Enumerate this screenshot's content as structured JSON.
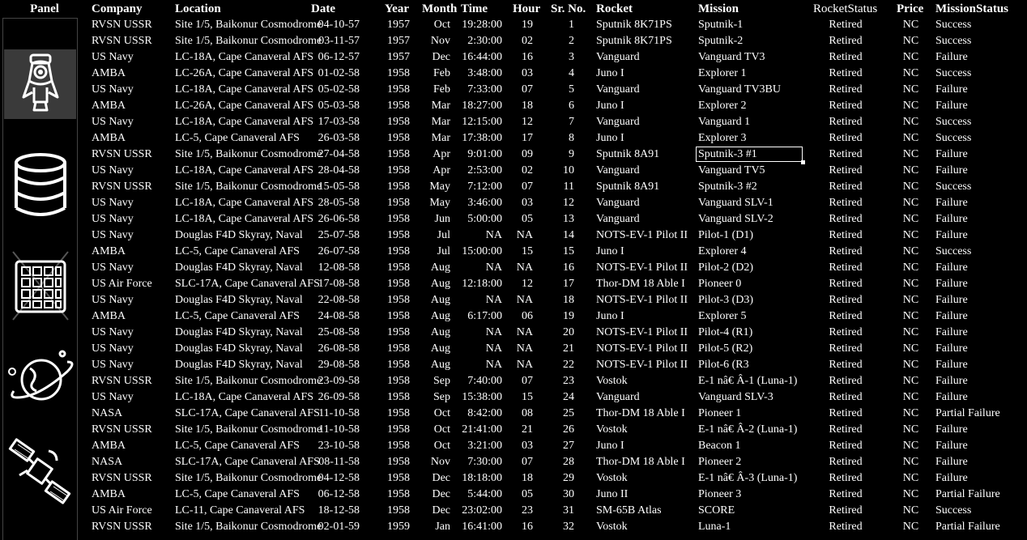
{
  "header": {
    "panel": "Panel",
    "company": "Company",
    "location": "Location",
    "date": "Date",
    "year": "Year",
    "month": "Month",
    "time": "Time",
    "hour": "Hour",
    "srno": "Sr. No.",
    "rocket": "Rocket",
    "mission": "Mission",
    "rocketstatus": "RocketStatus",
    "price": "Price",
    "missionstatus": "MissionStatus"
  },
  "panel_icons": [
    "rocket-icon",
    "database-icon",
    "grid-table-icon",
    "planet-icon",
    "satellite-icon"
  ],
  "selected": {
    "row": 8,
    "column": "mission"
  },
  "rows": [
    [
      "RVSN USSR",
      "Site 1/5, Baikonur Cosmodrome",
      "04-10-57",
      "1957",
      "Oct",
      "19:28:00",
      "19",
      "1",
      "Sputnik 8K71PS",
      "Sputnik-1",
      "Retired",
      "NC",
      "Success"
    ],
    [
      "RVSN USSR",
      "Site 1/5, Baikonur Cosmodrome",
      "03-11-57",
      "1957",
      "Nov",
      "2:30:00",
      "02",
      "2",
      "Sputnik 8K71PS",
      "Sputnik-2",
      "Retired",
      "NC",
      "Success"
    ],
    [
      "US Navy",
      "LC-18A, Cape Canaveral AFS",
      "06-12-57",
      "1957",
      "Dec",
      "16:44:00",
      "16",
      "3",
      "Vanguard",
      "Vanguard TV3",
      "Retired",
      "NC",
      "Failure"
    ],
    [
      "AMBA",
      "LC-26A, Cape Canaveral AFS",
      "01-02-58",
      "1958",
      "Feb",
      "3:48:00",
      "03",
      "4",
      "Juno I",
      "Explorer 1",
      "Retired",
      "NC",
      "Success"
    ],
    [
      "US Navy",
      "LC-18A, Cape Canaveral AFS",
      "05-02-58",
      "1958",
      "Feb",
      "7:33:00",
      "07",
      "5",
      "Vanguard",
      "Vanguard TV3BU",
      "Retired",
      "NC",
      "Failure"
    ],
    [
      "AMBA",
      "LC-26A, Cape Canaveral AFS",
      "05-03-58",
      "1958",
      "Mar",
      "18:27:00",
      "18",
      "6",
      "Juno I",
      "Explorer 2",
      "Retired",
      "NC",
      "Failure"
    ],
    [
      "US Navy",
      "LC-18A, Cape Canaveral AFS",
      "17-03-58",
      "1958",
      "Mar",
      "12:15:00",
      "12",
      "7",
      "Vanguard",
      "Vanguard 1",
      "Retired",
      "NC",
      "Success"
    ],
    [
      "AMBA",
      "LC-5, Cape Canaveral AFS",
      "26-03-58",
      "1958",
      "Mar",
      "17:38:00",
      "17",
      "8",
      "Juno I",
      "Explorer 3",
      "Retired",
      "NC",
      "Success"
    ],
    [
      "RVSN USSR",
      "Site 1/5, Baikonur Cosmodrome",
      "27-04-58",
      "1958",
      "Apr",
      "9:01:00",
      "09",
      "9",
      "Sputnik 8A91",
      "Sputnik-3 #1",
      "Retired",
      "NC",
      "Failure"
    ],
    [
      "US Navy",
      "LC-18A, Cape Canaveral AFS",
      "28-04-58",
      "1958",
      "Apr",
      "2:53:00",
      "02",
      "10",
      "Vanguard",
      "Vanguard TV5",
      "Retired",
      "NC",
      "Failure"
    ],
    [
      "RVSN USSR",
      "Site 1/5, Baikonur Cosmodrome",
      "15-05-58",
      "1958",
      "May",
      "7:12:00",
      "07",
      "11",
      "Sputnik 8A91",
      "Sputnik-3 #2",
      "Retired",
      "NC",
      "Success"
    ],
    [
      "US Navy",
      "LC-18A, Cape Canaveral AFS",
      "28-05-58",
      "1958",
      "May",
      "3:46:00",
      "03",
      "12",
      "Vanguard",
      "Vanguard SLV-1",
      "Retired",
      "NC",
      "Failure"
    ],
    [
      "US Navy",
      "LC-18A, Cape Canaveral AFS",
      "26-06-58",
      "1958",
      "Jun",
      "5:00:00",
      "05",
      "13",
      "Vanguard",
      "Vanguard SLV-2",
      "Retired",
      "NC",
      "Failure"
    ],
    [
      "US Navy",
      "Douglas F4D Skyray, Naval",
      "25-07-58",
      "1958",
      "Jul",
      "NA",
      "NA",
      "14",
      "NOTS-EV-1 Pilot II",
      "Pilot-1 (D1)",
      "Retired",
      "NC",
      "Failure"
    ],
    [
      "AMBA",
      "LC-5, Cape Canaveral AFS",
      "26-07-58",
      "1958",
      "Jul",
      "15:00:00",
      "15",
      "15",
      "Juno I",
      "Explorer 4",
      "Retired",
      "NC",
      "Success"
    ],
    [
      "US Navy",
      "Douglas F4D Skyray, Naval",
      "12-08-58",
      "1958",
      "Aug",
      "NA",
      "NA",
      "16",
      "NOTS-EV-1 Pilot II",
      "Pilot-2 (D2)",
      "Retired",
      "NC",
      "Failure"
    ],
    [
      "US Air Force",
      "SLC-17A, Cape Canaveral AFS",
      "17-08-58",
      "1958",
      "Aug",
      "12:18:00",
      "12",
      "17",
      "Thor-DM 18 Able I",
      "Pioneer 0",
      "Retired",
      "NC",
      "Failure"
    ],
    [
      "US Navy",
      "Douglas F4D Skyray, Naval",
      "22-08-58",
      "1958",
      "Aug",
      "NA",
      "NA",
      "18",
      "NOTS-EV-1 Pilot II",
      "Pilot-3 (D3)",
      "Retired",
      "NC",
      "Failure"
    ],
    [
      "AMBA",
      "LC-5, Cape Canaveral AFS",
      "24-08-58",
      "1958",
      "Aug",
      "6:17:00",
      "06",
      "19",
      "Juno I",
      "Explorer 5",
      "Retired",
      "NC",
      "Failure"
    ],
    [
      "US Navy",
      "Douglas F4D Skyray, Naval",
      "25-08-58",
      "1958",
      "Aug",
      "NA",
      "NA",
      "20",
      "NOTS-EV-1 Pilot II",
      "Pilot-4 (R1)",
      "Retired",
      "NC",
      "Failure"
    ],
    [
      "US Navy",
      "Douglas F4D Skyray, Naval",
      "26-08-58",
      "1958",
      "Aug",
      "NA",
      "NA",
      "21",
      "NOTS-EV-1 Pilot II",
      "Pilot-5 (R2)",
      "Retired",
      "NC",
      "Failure"
    ],
    [
      "US Navy",
      "Douglas F4D Skyray, Naval",
      "29-08-58",
      "1958",
      "Aug",
      "NA",
      "NA",
      "22",
      "NOTS-EV-1 Pilot II",
      "Pilot-6 (R3",
      "Retired",
      "NC",
      "Failure"
    ],
    [
      "RVSN USSR",
      "Site 1/5, Baikonur Cosmodrome",
      "23-09-58",
      "1958",
      "Sep",
      "7:40:00",
      "07",
      "23",
      "Vostok",
      "E-1 nâ€ Â-1 (Luna-1)",
      "Retired",
      "NC",
      "Failure"
    ],
    [
      "US Navy",
      "LC-18A, Cape Canaveral AFS",
      "26-09-58",
      "1958",
      "Sep",
      "15:38:00",
      "15",
      "24",
      "Vanguard",
      "Vanguard SLV-3",
      "Retired",
      "NC",
      "Failure"
    ],
    [
      "NASA",
      "SLC-17A, Cape Canaveral AFS",
      "11-10-58",
      "1958",
      "Oct",
      "8:42:00",
      "08",
      "25",
      "Thor-DM 18 Able I",
      "Pioneer 1",
      "Retired",
      "NC",
      "Partial Failure"
    ],
    [
      "RVSN USSR",
      "Site 1/5, Baikonur Cosmodrome",
      "11-10-58",
      "1958",
      "Oct",
      "21:41:00",
      "21",
      "26",
      "Vostok",
      "E-1 nâ€ Â-2 (Luna-1)",
      "Retired",
      "NC",
      "Failure"
    ],
    [
      "AMBA",
      "LC-5, Cape Canaveral AFS",
      "23-10-58",
      "1958",
      "Oct",
      "3:21:00",
      "03",
      "27",
      "Juno I",
      "Beacon 1",
      "Retired",
      "NC",
      "Failure"
    ],
    [
      "NASA",
      "SLC-17A, Cape Canaveral AFS",
      "08-11-58",
      "1958",
      "Nov",
      "7:30:00",
      "07",
      "28",
      "Thor-DM 18 Able I",
      "Pioneer 2",
      "Retired",
      "NC",
      "Failure"
    ],
    [
      "RVSN USSR",
      "Site 1/5, Baikonur Cosmodrome",
      "04-12-58",
      "1958",
      "Dec",
      "18:18:00",
      "18",
      "29",
      "Vostok",
      "E-1 nâ€ Â-3 (Luna-1)",
      "Retired",
      "NC",
      "Failure"
    ],
    [
      "AMBA",
      "LC-5, Cape Canaveral AFS",
      "06-12-58",
      "1958",
      "Dec",
      "5:44:00",
      "05",
      "30",
      "Juno II",
      "Pioneer 3",
      "Retired",
      "NC",
      "Partial Failure"
    ],
    [
      "US Air Force",
      "LC-11, Cape Canaveral AFS",
      "18-12-58",
      "1958",
      "Dec",
      "23:02:00",
      "23",
      "31",
      "SM-65B Atlas",
      "SCORE",
      "Retired",
      "NC",
      "Success"
    ],
    [
      "RVSN USSR",
      "Site 1/5, Baikonur Cosmodrome",
      "02-01-59",
      "1959",
      "Jan",
      "16:41:00",
      "16",
      "32",
      "Vostok",
      "Luna-1",
      "Retired",
      "NC",
      "Partial Failure"
    ]
  ]
}
